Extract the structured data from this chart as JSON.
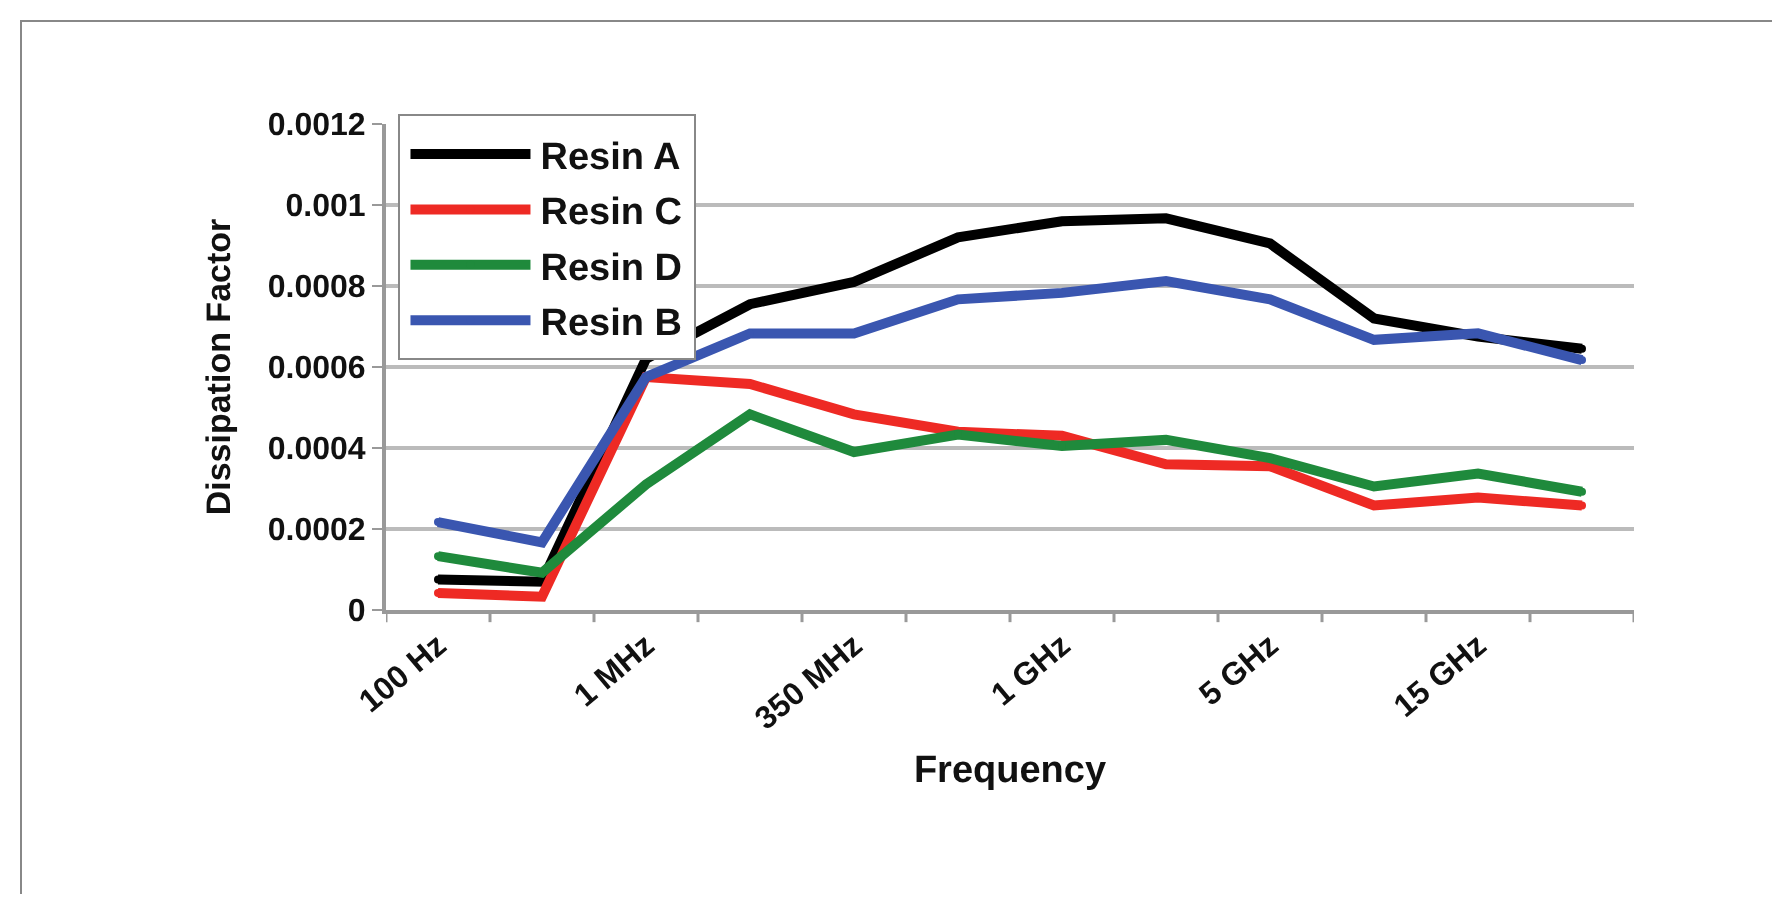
{
  "chart_data": {
    "type": "line",
    "xlabel": "Frequency",
    "ylabel": "Dissipation Factor",
    "categories": [
      "100 Hz",
      null,
      "1 MHz",
      null,
      "350 MHz",
      null,
      "1 GHz",
      null,
      "5 GHz",
      null,
      "15 GHz",
      null
    ],
    "series": [
      {
        "name": "Resin A",
        "color": "#000000",
        "values": [
          7.5e-05,
          7e-05,
          0.00062,
          0.000755,
          0.00081,
          0.00092,
          0.00096,
          0.000967,
          0.000905,
          0.00072,
          0.000675,
          0.000645
        ]
      },
      {
        "name": "Resin C",
        "color": "#ee2a24",
        "values": [
          4.2e-05,
          3.3e-05,
          0.000575,
          0.000558,
          0.000483,
          0.00044,
          0.00043,
          0.00036,
          0.000355,
          0.000258,
          0.000278,
          0.000258
        ]
      },
      {
        "name": "Resin D",
        "color": "#1f8a3c",
        "values": [
          0.000133,
          9.2e-05,
          0.00031,
          0.000483,
          0.00039,
          0.000433,
          0.000405,
          0.00042,
          0.000375,
          0.000305,
          0.000337,
          0.000292
        ]
      },
      {
        "name": "Resin B",
        "color": "#3a56b0",
        "values": [
          0.000217,
          0.000167,
          0.000575,
          0.000683,
          0.000683,
          0.000767,
          0.000783,
          0.000812,
          0.000767,
          0.000667,
          0.000683,
          0.000617
        ]
      }
    ],
    "ylim": [
      0,
      0.0012
    ],
    "yticks": [
      0,
      0.0002,
      0.0004,
      0.0006,
      0.0008,
      0.001,
      0.0012
    ],
    "grid": "y",
    "legend": "top left",
    "marker": "circle",
    "line_style": "solid"
  }
}
